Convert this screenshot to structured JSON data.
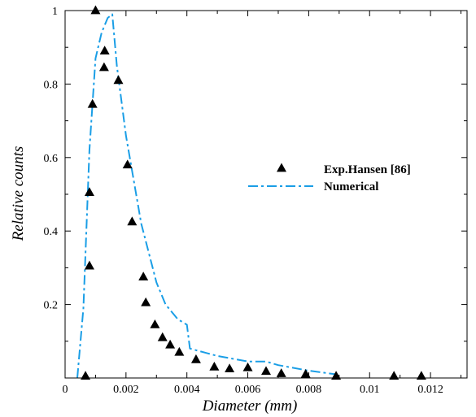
{
  "chart_data": {
    "type": "scatter",
    "title": "",
    "xlabel": "Diameter (mm)",
    "ylabel": "Relative counts",
    "xlim": [
      0,
      0.0132
    ],
    "ylim": [
      0,
      1
    ],
    "x_ticks": [
      "0",
      "0.002",
      "0.004",
      "0.006",
      "0.008",
      "0.01",
      "0.012"
    ],
    "x_tick_values": [
      0,
      0.002,
      0.004,
      0.006,
      0.008,
      0.01,
      0.012
    ],
    "y_ticks": [
      "0.2",
      "0.4",
      "0.6",
      "0.8",
      "1"
    ],
    "y_tick_values": [
      0.2,
      0.4,
      0.6,
      0.8,
      1.0
    ],
    "grid": false,
    "legend_position": "right",
    "colors": {
      "experimental": "#000000",
      "numerical": "#1a9ee6"
    },
    "series": [
      {
        "name": "Exp.Hansen [86]",
        "style": "triangle-markers",
        "x": [
          0.00067,
          0.0008,
          0.0008,
          0.0009,
          0.001,
          0.00128,
          0.0013,
          0.00175,
          0.00205,
          0.0022,
          0.00257,
          0.00265,
          0.00295,
          0.0032,
          0.00345,
          0.00375,
          0.0043,
          0.0049,
          0.0054,
          0.006,
          0.0066,
          0.0071,
          0.0079,
          0.0089,
          0.0108,
          0.0117
        ],
        "y": [
          0.005,
          0.305,
          0.505,
          0.745,
          1.0,
          0.845,
          0.89,
          0.81,
          0.58,
          0.425,
          0.275,
          0.205,
          0.145,
          0.11,
          0.09,
          0.07,
          0.05,
          0.03,
          0.025,
          0.028,
          0.018,
          0.012,
          0.01,
          0.005,
          0.005,
          0.005
        ]
      },
      {
        "name": "Numerical",
        "style": "dash-dot-line",
        "x": [
          0.0004,
          0.0006,
          0.0008,
          0.001,
          0.0012,
          0.0014,
          0.00155,
          0.0017,
          0.002,
          0.0025,
          0.003,
          0.0033,
          0.0037,
          0.004,
          0.0041,
          0.005,
          0.006,
          0.0066,
          0.007,
          0.008,
          0.0089
        ],
        "y": [
          0.0,
          0.19,
          0.62,
          0.87,
          0.94,
          0.98,
          0.99,
          0.85,
          0.66,
          0.42,
          0.26,
          0.2,
          0.16,
          0.145,
          0.08,
          0.06,
          0.045,
          0.045,
          0.035,
          0.02,
          0.01
        ]
      }
    ]
  }
}
